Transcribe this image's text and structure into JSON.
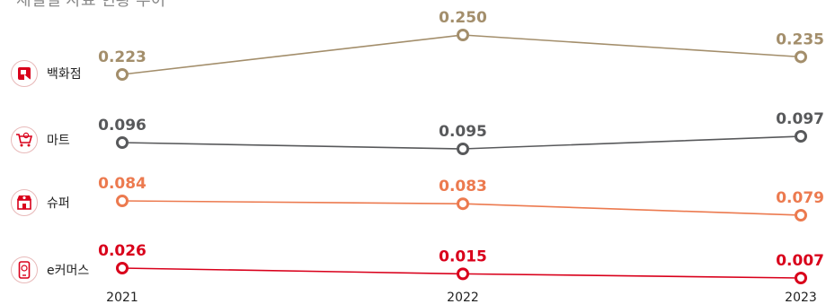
{
  "title_partial": "채널별 자료 현황 추이",
  "colors": {
    "department": "#a38e6b",
    "mart": "#58595b",
    "super": "#ec7a4f",
    "ecommerce": "#d9001b"
  },
  "chart_data": {
    "type": "line",
    "x": [
      "2021",
      "2022",
      "2023"
    ],
    "series": [
      {
        "name": "백화점",
        "values": [
          0.223,
          0.25,
          0.235
        ],
        "labels": [
          "0.223",
          "0.250",
          "0.235"
        ],
        "color": "#a38e6b",
        "icon": "department-store-icon"
      },
      {
        "name": "마트",
        "values": [
          0.096,
          0.095,
          0.097
        ],
        "labels": [
          "0.096",
          "0.095",
          "0.097"
        ],
        "color": "#58595b",
        "icon": "shopping-cart-icon"
      },
      {
        "name": "슈퍼",
        "values": [
          0.084,
          0.083,
          0.079
        ],
        "labels": [
          "0.084",
          "0.083",
          "0.079"
        ],
        "color": "#ec7a4f",
        "icon": "storefront-icon"
      },
      {
        "name": "e커머스",
        "values": [
          0.026,
          0.015,
          0.007
        ],
        "labels": [
          "0.026",
          "0.015",
          "0.007"
        ],
        "color": "#d9001b",
        "icon": "smartphone-icon"
      }
    ],
    "grid": false,
    "legend": "left"
  }
}
